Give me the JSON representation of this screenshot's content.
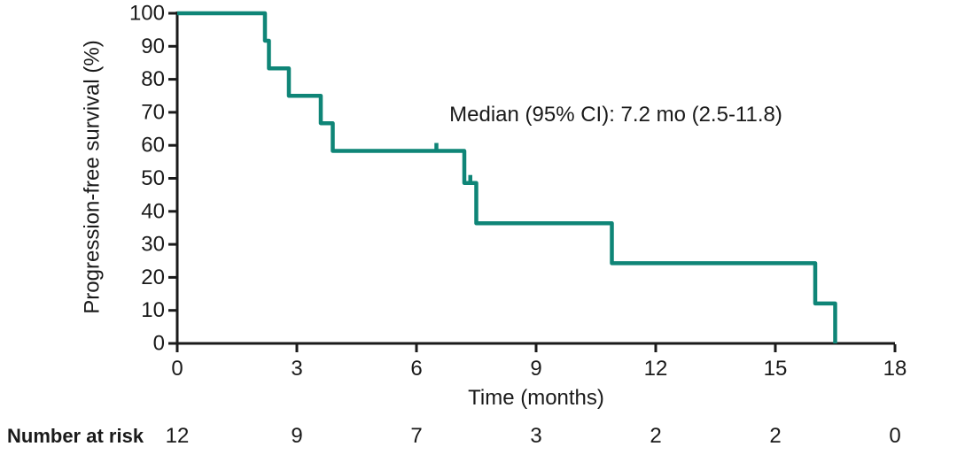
{
  "figure": {
    "background": "#ffffff"
  },
  "chart_data": {
    "type": "line",
    "subtype": "kaplan-meier-step-curve",
    "title": "",
    "annotation": "Median (95% CI): 7.2 mo (2.5-11.8)",
    "xlabel": "Time (months)",
    "ylabel": "Progression-free survival (%)",
    "xlim": [
      0,
      18
    ],
    "ylim": [
      0,
      100
    ],
    "xticks": [
      0,
      3,
      6,
      9,
      12,
      15,
      18
    ],
    "yticks": [
      0,
      10,
      20,
      30,
      40,
      50,
      60,
      70,
      80,
      90,
      100
    ],
    "grid": false,
    "legend": false,
    "colors": {
      "curve": "#0F8577",
      "axis": "#1a1a1a",
      "text": "#1a1a1a"
    },
    "series": [
      {
        "name": "Progression-free survival",
        "start": {
          "t": 0,
          "s": 100
        },
        "drops": [
          {
            "t": 2.2,
            "s": 91.7
          },
          {
            "t": 2.3,
            "s": 83.3
          },
          {
            "t": 2.8,
            "s": 75.0
          },
          {
            "t": 3.6,
            "s": 66.7
          },
          {
            "t": 3.9,
            "s": 58.3
          },
          {
            "t": 7.2,
            "s": 48.6
          },
          {
            "t": 7.5,
            "s": 36.4
          },
          {
            "t": 10.9,
            "s": 24.3
          },
          {
            "t": 16.0,
            "s": 12.1
          },
          {
            "t": 16.5,
            "s": 0
          }
        ],
        "censor_marks": [
          {
            "t": 6.5,
            "s": 58.3
          },
          {
            "t": 7.35,
            "s": 48.6
          }
        ]
      }
    ],
    "number_at_risk": {
      "label": "Number at risk",
      "times": [
        0,
        3,
        6,
        9,
        12,
        15,
        18
      ],
      "values": [
        12,
        9,
        7,
        3,
        2,
        2,
        0
      ]
    }
  }
}
